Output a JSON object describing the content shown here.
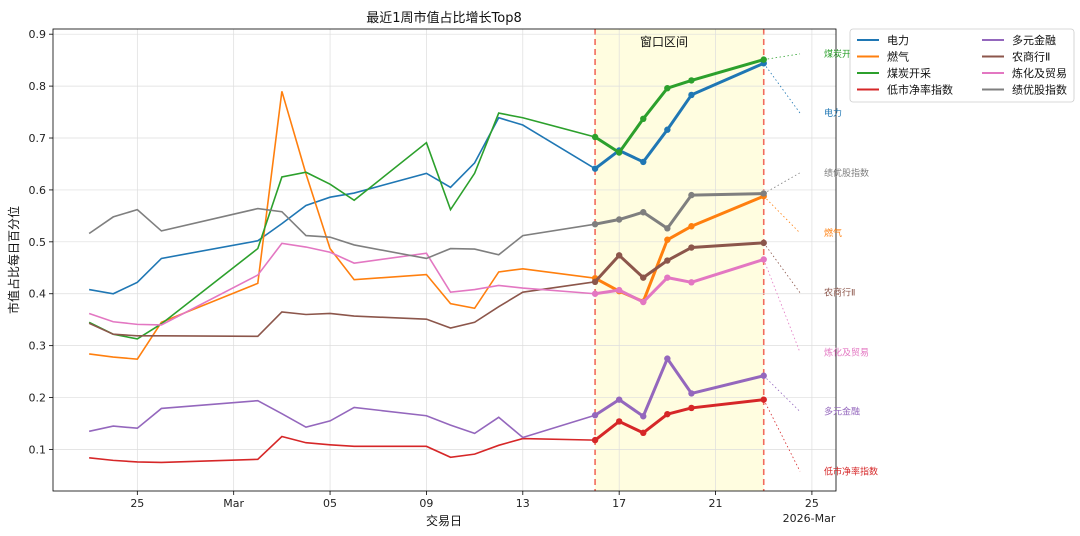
{
  "chart_data": {
    "type": "line",
    "title": "最近1周市值占比增长Top8",
    "xlabel": "交易日",
    "ylabel": "市值占比每日百分位",
    "ylim": [
      0.02,
      0.91
    ],
    "x_tick_labels": [
      "25",
      "Mar",
      "05",
      "09",
      "13",
      "17",
      "21",
      "25"
    ],
    "x_corner_label": "2026-Mar",
    "y_tick_labels": [
      "0.1",
      "0.2",
      "0.3",
      "0.4",
      "0.5",
      "0.6",
      "0.7",
      "0.8",
      "0.9"
    ],
    "grid": true,
    "legend_position": "outside-top-right",
    "window": {
      "label": "窗口区间",
      "start": "2026-03-16",
      "end": "2026-03-23",
      "fill_color": "#fffde0",
      "line_color": "#f26b5b"
    },
    "dates": [
      "2026-02-23",
      "2026-02-24",
      "2026-02-25",
      "2026-02-26",
      "2026-03-02",
      "2026-03-03",
      "2026-03-04",
      "2026-03-05",
      "2026-03-06",
      "2026-03-09",
      "2026-03-10",
      "2026-03-11",
      "2026-03-12",
      "2026-03-13",
      "2026-03-16",
      "2026-03-17",
      "2026-03-18",
      "2026-03-19",
      "2026-03-20",
      "2026-03-23"
    ],
    "series": [
      {
        "name": "电力",
        "color": "#1f77b4",
        "values": [
          0.408,
          0.4,
          0.422,
          0.468,
          0.502,
          0.535,
          0.57,
          0.586,
          0.594,
          0.632,
          0.605,
          0.652,
          0.739,
          0.725,
          0.641,
          0.676,
          0.654,
          0.716,
          0.783,
          0.844
        ]
      },
      {
        "name": "燃气",
        "color": "#ff7f0e",
        "values": [
          0.284,
          0.278,
          0.274,
          0.345,
          0.42,
          0.79,
          0.631,
          0.487,
          0.427,
          0.437,
          0.381,
          0.372,
          0.442,
          0.448,
          0.43,
          0.405,
          0.385,
          0.504,
          0.53,
          0.588
        ]
      },
      {
        "name": "煤炭开采",
        "color": "#2ca02c",
        "values": [
          0.345,
          0.322,
          0.313,
          0.342,
          0.487,
          0.625,
          0.634,
          0.611,
          0.58,
          0.691,
          0.562,
          0.632,
          0.748,
          0.739,
          0.702,
          0.672,
          0.737,
          0.796,
          0.811,
          0.851
        ]
      },
      {
        "name": "低市净率指数",
        "color": "#d62728",
        "values": [
          0.084,
          0.079,
          0.076,
          0.075,
          0.081,
          0.125,
          0.113,
          0.109,
          0.106,
          0.106,
          0.085,
          0.091,
          0.108,
          0.121,
          0.118,
          0.154,
          0.132,
          0.168,
          0.18,
          0.196
        ]
      },
      {
        "name": "多元金融",
        "color": "#9467bd",
        "values": [
          0.135,
          0.145,
          0.141,
          0.179,
          0.194,
          0.169,
          0.143,
          0.155,
          0.181,
          0.165,
          0.147,
          0.131,
          0.162,
          0.123,
          0.166,
          0.196,
          0.164,
          0.275,
          0.208,
          0.242
        ]
      },
      {
        "name": "农商行Ⅱ",
        "color": "#8c564b",
        "values": [
          0.343,
          0.322,
          0.319,
          0.319,
          0.318,
          0.365,
          0.36,
          0.362,
          0.357,
          0.351,
          0.334,
          0.345,
          0.375,
          0.403,
          0.423,
          0.474,
          0.431,
          0.464,
          0.489,
          0.498
        ]
      },
      {
        "name": "炼化及贸易",
        "color": "#e377c2",
        "values": [
          0.362,
          0.346,
          0.341,
          0.34,
          0.436,
          0.497,
          0.49,
          0.48,
          0.459,
          0.478,
          0.403,
          0.408,
          0.416,
          0.411,
          0.4,
          0.407,
          0.384,
          0.431,
          0.422,
          0.466
        ]
      },
      {
        "name": "绩优股指数",
        "color": "#7f7f7f",
        "values": [
          0.516,
          0.548,
          0.562,
          0.521,
          0.564,
          0.558,
          0.512,
          0.509,
          0.494,
          0.468,
          0.487,
          0.486,
          0.475,
          0.512,
          0.534,
          0.543,
          0.557,
          0.526,
          0.59,
          0.593
        ]
      }
    ],
    "end_labels": [
      {
        "text": "煤炭开采",
        "series": "煤炭开采",
        "y": 0.862
      },
      {
        "text": "电力",
        "series": "电力",
        "y": 0.748
      },
      {
        "text": "绩优股指数",
        "series": "绩优股指数",
        "y": 0.633
      },
      {
        "text": "燃气",
        "series": "燃气",
        "y": 0.517
      },
      {
        "text": "农商行Ⅱ",
        "series": "农商行Ⅱ",
        "y": 0.402
      },
      {
        "text": "炼化及贸易",
        "series": "炼化及贸易",
        "y": 0.287
      },
      {
        "text": "多元金融",
        "series": "多元金融",
        "y": 0.173
      },
      {
        "text": "低市净率指数",
        "series": "低市净率指数",
        "y": 0.058
      }
    ]
  }
}
